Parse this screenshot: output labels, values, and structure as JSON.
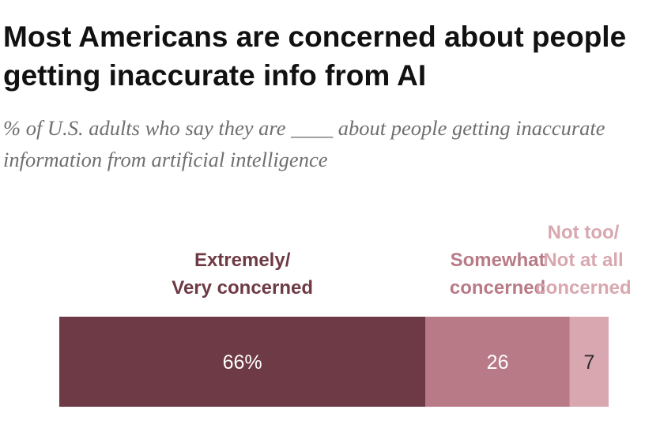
{
  "title": "Most Americans are concerned about people getting inaccurate info from AI",
  "subtitle": "% of U.S. adults who say they are ____ about people getting inaccurate information from artificial intelligence",
  "chart_data": {
    "type": "bar",
    "orientation": "horizontal-stacked",
    "categories": [
      "Extremely/ Very concerned",
      "Somewhat concerned",
      "Not too/ Not at all concerned"
    ],
    "category_lines": [
      [
        "Extremely/",
        "Very concerned"
      ],
      [
        "Somewhat",
        "concerned"
      ],
      [
        "Not too/",
        "Not at all",
        "concerned"
      ]
    ],
    "values": [
      66,
      26,
      7
    ],
    "value_labels": [
      "66%",
      "26",
      "7"
    ],
    "unit": "%",
    "xlim": [
      0,
      100
    ],
    "colors": {
      "segments": [
        "#6e3a45",
        "#b87a86",
        "#d8a7b0"
      ],
      "category_labels": [
        "#6e3a45",
        "#b87a86",
        "#d8a7b0"
      ],
      "value_labels": [
        "#ffffff",
        "#ffffff",
        "#2b2b2b"
      ]
    },
    "grid": false,
    "legend": "none"
  }
}
